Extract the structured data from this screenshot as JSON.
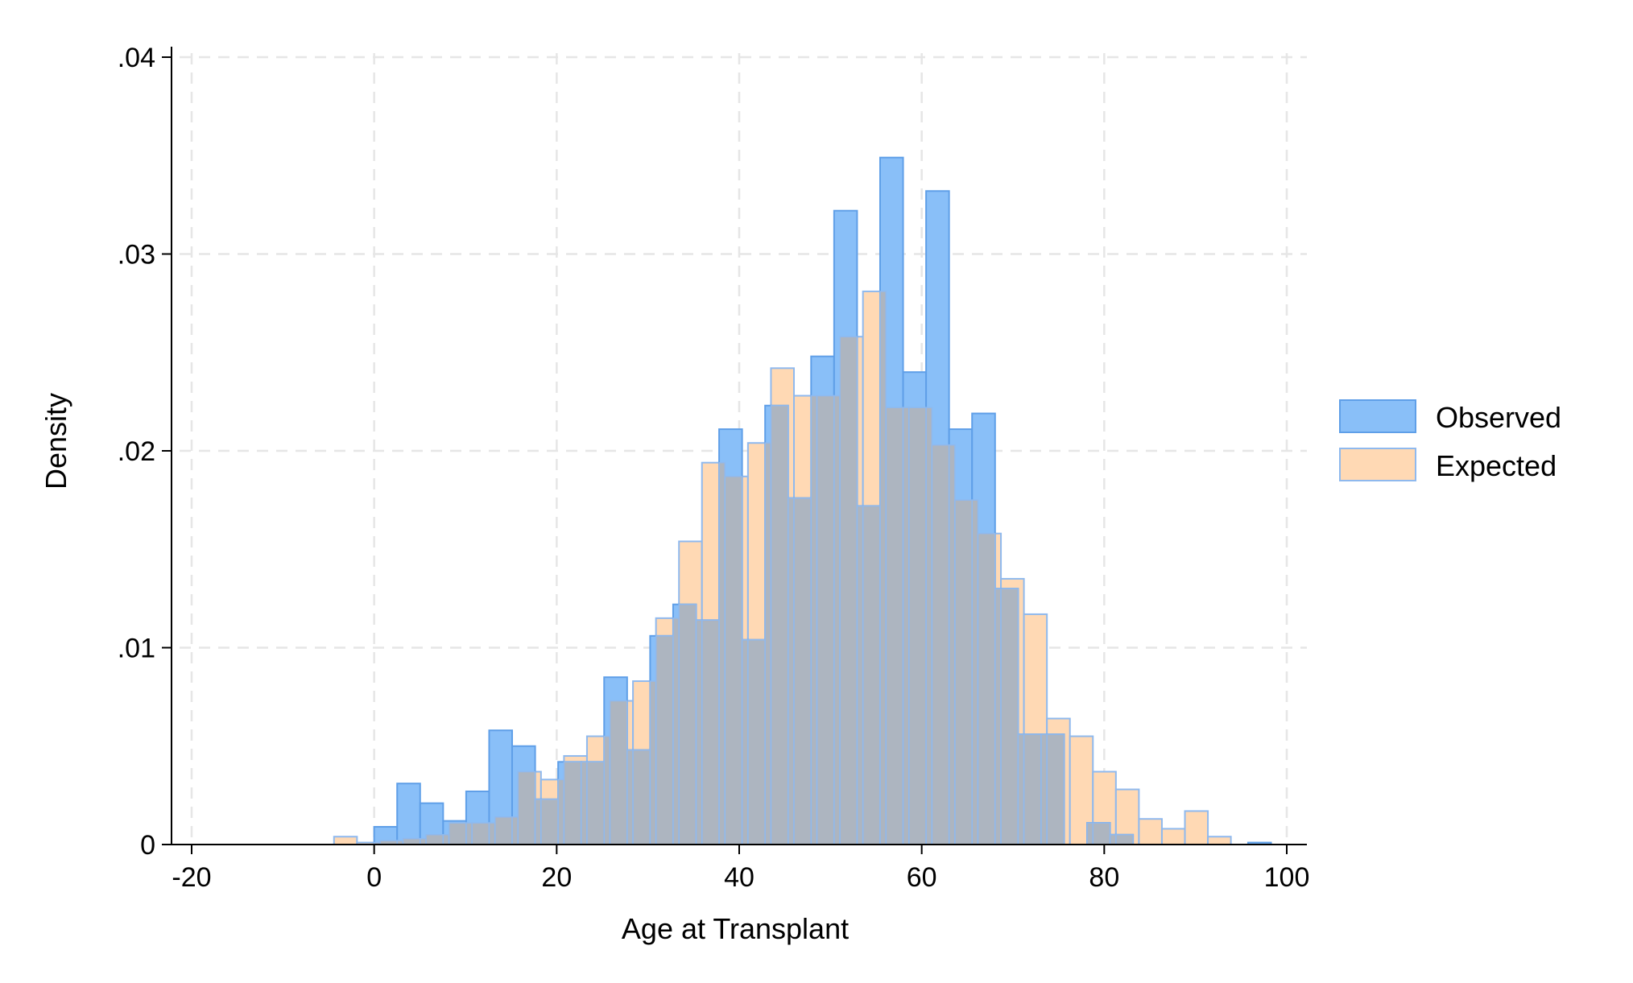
{
  "chart_data": {
    "type": "histogram",
    "xlabel": "Age at Transplant",
    "ylabel": "Density",
    "xlim": [
      -20,
      100
    ],
    "ylim": [
      0,
      0.04
    ],
    "x_ticks": [
      {
        "value": -20,
        "label": "-20"
      },
      {
        "value": 0,
        "label": "0"
      },
      {
        "value": 20,
        "label": "20"
      },
      {
        "value": 40,
        "label": "40"
      },
      {
        "value": 60,
        "label": "60"
      },
      {
        "value": 80,
        "label": "80"
      },
      {
        "value": 100,
        "label": "100"
      }
    ],
    "y_ticks": [
      {
        "value": 0,
        "label": "0"
      },
      {
        "value": 0.01,
        "label": ".01"
      },
      {
        "value": 0.02,
        "label": ".02"
      },
      {
        "value": 0.03,
        "label": ".03"
      },
      {
        "value": 0.04,
        "label": ".04"
      }
    ],
    "grid": true,
    "legend_position": "right",
    "series": [
      {
        "name": "Expected",
        "fill": "#ffd9b4",
        "stroke": "#8fb9ee",
        "opacity": 0.82,
        "bin_width": 2.52,
        "bins": [
          {
            "x0": -4.4,
            "value": 0.0004
          },
          {
            "x0": -1.88,
            "value": 0.0001
          },
          {
            "x0": 0.64,
            "value": 0.0002
          },
          {
            "x0": 3.16,
            "value": 0.0003
          },
          {
            "x0": 5.68,
            "value": 0.0005
          },
          {
            "x0": 8.2,
            "value": 0.0011
          },
          {
            "x0": 10.72,
            "value": 0.0011
          },
          {
            "x0": 13.24,
            "value": 0.0014
          },
          {
            "x0": 15.76,
            "value": 0.0037
          },
          {
            "x0": 18.28,
            "value": 0.0033
          },
          {
            "x0": 20.8,
            "value": 0.0045
          },
          {
            "x0": 23.32,
            "value": 0.0055
          },
          {
            "x0": 25.84,
            "value": 0.0073
          },
          {
            "x0": 28.36,
            "value": 0.0083
          },
          {
            "x0": 30.88,
            "value": 0.0115
          },
          {
            "x0": 33.4,
            "value": 0.0154
          },
          {
            "x0": 35.92,
            "value": 0.0194
          },
          {
            "x0": 38.44,
            "value": 0.0187
          },
          {
            "x0": 40.96,
            "value": 0.0204
          },
          {
            "x0": 43.48,
            "value": 0.0242
          },
          {
            "x0": 46.0,
            "value": 0.0228
          },
          {
            "x0": 48.52,
            "value": 0.0228
          },
          {
            "x0": 51.04,
            "value": 0.0258
          },
          {
            "x0": 53.56,
            "value": 0.0281
          },
          {
            "x0": 56.08,
            "value": 0.0222
          },
          {
            "x0": 58.6,
            "value": 0.0222
          },
          {
            "x0": 61.12,
            "value": 0.0203
          },
          {
            "x0": 63.64,
            "value": 0.0175
          },
          {
            "x0": 66.16,
            "value": 0.0158
          },
          {
            "x0": 68.68,
            "value": 0.0135
          },
          {
            "x0": 71.2,
            "value": 0.0117
          },
          {
            "x0": 73.72,
            "value": 0.0064
          },
          {
            "x0": 76.24,
            "value": 0.0055
          },
          {
            "x0": 78.76,
            "value": 0.0037
          },
          {
            "x0": 81.28,
            "value": 0.0028
          },
          {
            "x0": 83.8,
            "value": 0.0013
          },
          {
            "x0": 86.32,
            "value": 0.0008
          },
          {
            "x0": 88.84,
            "value": 0.0017
          },
          {
            "x0": 91.36,
            "value": 0.0004
          }
        ]
      },
      {
        "name": "Observed",
        "fill": "#89bff8",
        "stroke": "#5f9fe8",
        "opacity": 1,
        "bin_width": 2.52,
        "bins": [
          {
            "x0": 0.0,
            "value": 0.0009
          },
          {
            "x0": 2.52,
            "value": 0.0031
          },
          {
            "x0": 5.04,
            "value": 0.0021
          },
          {
            "x0": 7.56,
            "value": 0.0012
          },
          {
            "x0": 10.08,
            "value": 0.0027
          },
          {
            "x0": 12.6,
            "value": 0.0058
          },
          {
            "x0": 15.12,
            "value": 0.005
          },
          {
            "x0": 17.64,
            "value": 0.0023
          },
          {
            "x0": 20.16,
            "value": 0.0042
          },
          {
            "x0": 22.68,
            "value": 0.0042
          },
          {
            "x0": 25.2,
            "value": 0.0085
          },
          {
            "x0": 27.72,
            "value": 0.0048
          },
          {
            "x0": 30.24,
            "value": 0.0106
          },
          {
            "x0": 32.76,
            "value": 0.0122
          },
          {
            "x0": 35.28,
            "value": 0.0114
          },
          {
            "x0": 37.8,
            "value": 0.0211
          },
          {
            "x0": 40.32,
            "value": 0.0104
          },
          {
            "x0": 42.84,
            "value": 0.0223
          },
          {
            "x0": 45.36,
            "value": 0.0176
          },
          {
            "x0": 47.88,
            "value": 0.0248
          },
          {
            "x0": 50.4,
            "value": 0.0322
          },
          {
            "x0": 52.92,
            "value": 0.0172
          },
          {
            "x0": 55.44,
            "value": 0.0349
          },
          {
            "x0": 57.96,
            "value": 0.024
          },
          {
            "x0": 60.48,
            "value": 0.0332
          },
          {
            "x0": 63.0,
            "value": 0.0211
          },
          {
            "x0": 65.52,
            "value": 0.0219
          },
          {
            "x0": 68.04,
            "value": 0.013
          },
          {
            "x0": 70.56,
            "value": 0.0056
          },
          {
            "x0": 73.08,
            "value": 0.0056
          },
          {
            "x0": 78.12,
            "value": 0.0011
          },
          {
            "x0": 80.64,
            "value": 0.0005
          },
          {
            "x0": 95.76,
            "value": 0.0001
          }
        ]
      }
    ],
    "overlap_fill": "#adb5c0",
    "legend": [
      {
        "label": "Observed",
        "color": "#89bff8",
        "stroke": "#5f9fe8"
      },
      {
        "label": "Expected",
        "color": "#ffd9b4",
        "stroke": "#8fb9ee"
      }
    ],
    "grid_color": "#e6e6e6"
  }
}
